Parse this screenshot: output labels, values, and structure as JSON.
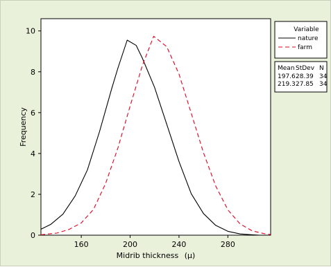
{
  "chart_data": {
    "type": "line",
    "xlabel": "Midrib thickness",
    "xlabel_unit": "(µ)",
    "ylabel": "Frequency",
    "xlim": [
      127,
      315
    ],
    "ylim": [
      0,
      10.6
    ],
    "x_ticks": [
      160,
      200,
      240,
      280
    ],
    "y_ticks": [
      0,
      2,
      4,
      6,
      8,
      10
    ],
    "grid": false,
    "legend": {
      "title": "Variable",
      "placement": "right",
      "entries": [
        {
          "name": "nature",
          "color": "#000000",
          "dash": "solid"
        },
        {
          "name": "farm",
          "color": "#e3001b",
          "dash": "dashed"
        }
      ]
    },
    "stats_table": {
      "headers": [
        "Mean",
        "StDev",
        "N"
      ],
      "rows": [
        [
          "197.6",
          "28.39",
          "34"
        ],
        [
          "219.3",
          "27.85",
          "34"
        ]
      ]
    },
    "series": [
      {
        "name": "nature",
        "color": "#000000",
        "x": [
          127,
          135,
          145,
          155,
          165,
          175,
          185,
          190,
          197.6,
          205,
          210,
          220,
          230,
          240,
          250,
          260,
          270,
          280,
          290,
          300,
          306
        ],
        "y": [
          0.29,
          0.53,
          1.03,
          1.92,
          3.19,
          5.08,
          7.19,
          8.18,
          9.55,
          9.29,
          8.67,
          7.24,
          5.43,
          3.6,
          2.03,
          1.06,
          0.48,
          0.19,
          0.06,
          0.02,
          0.0
        ]
      },
      {
        "name": "farm",
        "color": "#e3001b",
        "x": [
          127,
          140,
          150,
          160,
          170,
          180,
          190,
          200,
          210,
          219.3,
          230,
          240,
          250,
          260,
          270,
          280,
          290,
          300,
          310,
          315
        ],
        "y": [
          0.02,
          0.1,
          0.28,
          0.6,
          1.26,
          2.54,
          4.27,
          6.32,
          8.3,
          9.74,
          9.23,
          7.88,
          5.97,
          4.04,
          2.41,
          1.24,
          0.55,
          0.21,
          0.07,
          0.03
        ]
      }
    ]
  }
}
